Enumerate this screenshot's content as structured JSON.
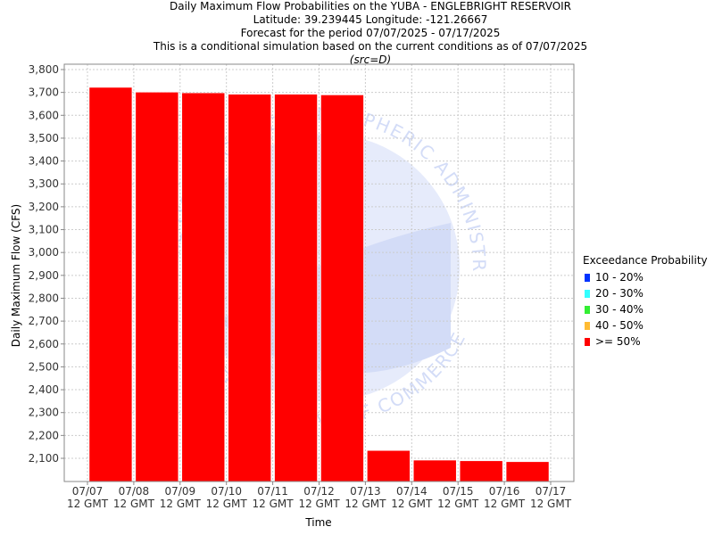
{
  "header": {
    "title_line1": "Daily Maximum Flow Probabilities on the YUBA - ENGLEBRIGHT RESERVOIR",
    "title_line2": "Latitude: 39.239445 Longitude: -121.26667",
    "title_line3": "Forecast for the period 07/07/2025 - 07/17/2025",
    "title_line4": "This is a conditional simulation based on the current conditions as of 07/07/2025",
    "title_line5": "(src=D)"
  },
  "legend": {
    "title": "Exceedance Probability",
    "items": [
      {
        "label": "10 - 20%",
        "color": "#0033ff"
      },
      {
        "label": "20 - 30%",
        "color": "#33ffff"
      },
      {
        "label": "30 - 40%",
        "color": "#33ee33"
      },
      {
        "label": "40 - 50%",
        "color": "#ffbb33"
      },
      {
        "label": ">= 50%",
        "color": "#ff0000"
      }
    ]
  },
  "watermark": {
    "text_top": "NATIONAL OCEANIC AND ATMOSPHERIC ADMINISTRATION",
    "text_bottom": "U.S. DEPARTMENT OF COMMERCE"
  },
  "chart_data": {
    "type": "bar",
    "xlabel": "Time",
    "ylabel": "Daily Maximum Flow (CFS)",
    "ylim": [
      2000,
      3800
    ],
    "y_ticks": [
      2100,
      2200,
      2300,
      2400,
      2500,
      2600,
      2700,
      2800,
      2900,
      3000,
      3100,
      3200,
      3300,
      3400,
      3500,
      3600,
      3700,
      3800
    ],
    "x_ticks": [
      {
        "date": "07/07",
        "time": "12 GMT"
      },
      {
        "date": "07/08",
        "time": "12 GMT"
      },
      {
        "date": "07/09",
        "time": "12 GMT"
      },
      {
        "date": "07/10",
        "time": "12 GMT"
      },
      {
        "date": "07/11",
        "time": "12 GMT"
      },
      {
        "date": "07/12",
        "time": "12 GMT"
      },
      {
        "date": "07/13",
        "time": "12 GMT"
      },
      {
        "date": "07/14",
        "time": "12 GMT"
      },
      {
        "date": "07/15",
        "time": "12 GMT"
      },
      {
        "date": "07/16",
        "time": "12 GMT"
      },
      {
        "date": "07/17",
        "time": "12 GMT"
      }
    ],
    "grid": true,
    "legend_position": "right",
    "series": [
      {
        "name": ">= 50%",
        "color": "#ff0000",
        "values": [
          3722,
          3701,
          3698,
          3692,
          3692,
          3689,
          2134,
          2092,
          2089,
          2085
        ]
      }
    ]
  }
}
